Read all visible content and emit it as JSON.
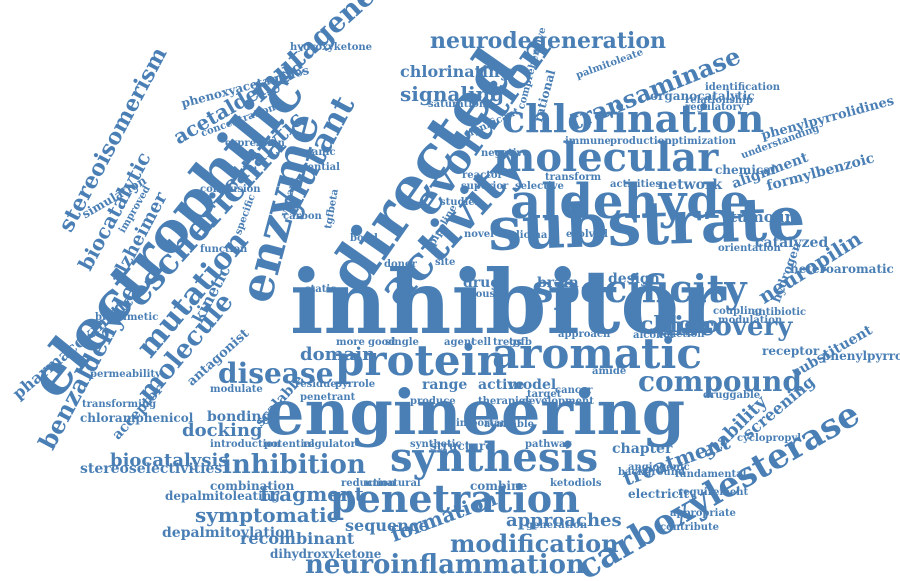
{
  "theme": {
    "word_color": "#4a7fb5",
    "background": "#ffffff"
  },
  "words": [
    "inhibitor",
    "engineering",
    "substrate",
    "electrophilic",
    "directed",
    "enzyme",
    "activity",
    "evolution",
    "protein",
    "aromatic",
    "aldehyde",
    "specificity",
    "molecular",
    "chlorination",
    "carboxylesterase",
    "synthesis",
    "penetration",
    "inhibition",
    "neurodegeneration",
    "mutagenesis",
    "escherichia",
    "mutant",
    "compound",
    "disease",
    "discovery",
    "neuroinflammation",
    "modification",
    "transaminase",
    "mutation",
    "molecule",
    "benzaldehyde",
    "stereoisomerism",
    "biocatalytic",
    "alzheimer",
    "acetaldehyde",
    "catalytic",
    "signaling",
    "chlorinating",
    "treatment",
    "neuropilin",
    "chloro",
    "domain",
    "fragment",
    "symptomatic",
    "docking",
    "biocatalysis",
    "stereoselectivities",
    "formation",
    "approaches",
    "sequence",
    "recombinant",
    "stability",
    "screening",
    "pharmacokinetic",
    "kinetic",
    "hydroxyketone",
    "phenoxyacetamides",
    "organocatalytic",
    "phenylpyrrolidines",
    "formylbenzoic",
    "tumour",
    "catalyzed",
    "heteroaromatic",
    "hydrogen",
    "receptor",
    "substituent",
    "phenylpyrroles",
    "depalmitoylation",
    "dihydroxyketone",
    "depalmitoleating",
    "combination",
    "chloramphenicol",
    "transforming",
    "acceptor",
    "antagonist",
    "bonding",
    "scalable",
    "range",
    "active",
    "model",
    "drug",
    "brain",
    "design",
    "network",
    "alignment",
    "chapter",
    "angiogenic",
    "druggable",
    "electricity",
    "ketodiols",
    "combine",
    "reduction",
    "unnatural",
    "potential",
    "regulator",
    "structure",
    "pathway",
    "target",
    "cancer",
    "amide",
    "glioma",
    "evolved",
    "novel",
    "studies",
    "superior",
    "palmitoleate",
    "production",
    "optimization",
    "immune",
    "simulation",
    "organic",
    "essential",
    "carbon",
    "reactor",
    "antibiotic",
    "modulation",
    "reaction",
    "alcohol",
    "agent",
    "cell",
    "tregs",
    "tgfb",
    "approach",
    "single",
    "good",
    "more",
    "residue",
    "pyrrole",
    "static",
    "improved",
    "specific",
    "function",
    "selective",
    "transform",
    "coupling",
    "cyclopropyl",
    "background",
    "fundamental",
    "requirement",
    "appropriate",
    "contribute",
    "generation",
    "development",
    "therapies",
    "available",
    "important",
    "synthetic",
    "produce",
    "introduction",
    "permeability",
    "concentration",
    "conclusion",
    "mouse",
    "site",
    "saturation",
    "regulatory",
    "relationship",
    "identification",
    "comprehensive",
    "rational",
    "significant",
    "negative",
    "expression",
    "chemical",
    "understanding",
    "activities",
    "orientation",
    "modulate",
    "penetrant",
    "biomimetic",
    "donor",
    "bond",
    "pipeline",
    "variant",
    "tgfbeta",
    "aliphatic",
    "properties",
    "propionaldehyde",
    "stereoselectivity",
    "determination",
    "identified",
    "pyrroles",
    "natural",
    "accept",
    "metabolite",
    "asymmetric",
    "antioxidant",
    "underlying",
    "cyclopropanation",
    "precursor"
  ]
}
